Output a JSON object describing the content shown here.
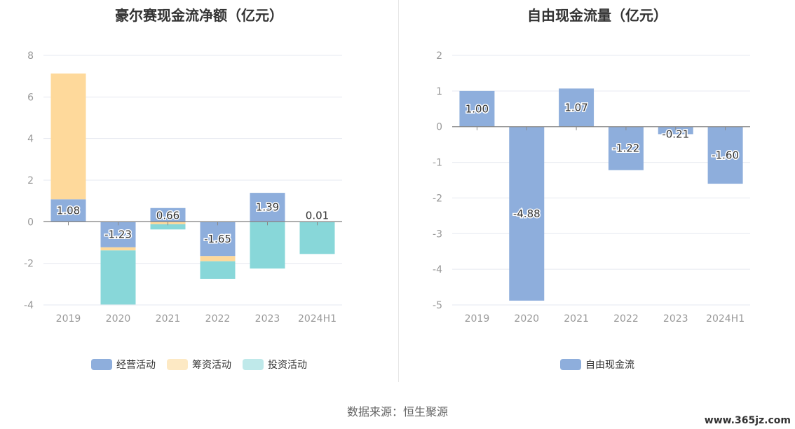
{
  "left": {
    "title": "豪尔赛现金流净额（亿元）",
    "legend": [
      {
        "label": "经营活动",
        "color": "#8eaedc"
      },
      {
        "label": "筹资活动",
        "color": "#fed99b"
      },
      {
        "label": "投资活动",
        "color": "#88d7d9"
      }
    ]
  },
  "right": {
    "title": "自由现金流量（亿元）",
    "legend": [
      {
        "label": "自由现金流",
        "color": "#8eaedc"
      }
    ]
  },
  "source": "数据来源：恒生聚源",
  "watermark": "www.365jz.com",
  "chart_data": [
    {
      "type": "bar",
      "stacked": true,
      "title": "豪尔赛现金流净额（亿元）",
      "categories": [
        "2019",
        "2020",
        "2021",
        "2022",
        "2023",
        "2024H1"
      ],
      "ylim": [
        -4,
        8
      ],
      "yticks": [
        -4,
        -2,
        0,
        2,
        4,
        6,
        8
      ],
      "grid": true,
      "legend_position": "bottom",
      "series": [
        {
          "name": "经营活动",
          "color": "#8eaedc",
          "values": [
            1.08,
            -1.23,
            0.66,
            -1.65,
            1.39,
            0.01
          ],
          "labels": [
            "1.08",
            "-1.23",
            "0.66",
            "-1.65",
            "1.39",
            "0.01"
          ]
        },
        {
          "name": "筹资活动",
          "color": "#fed99b",
          "values": [
            6.05,
            -0.15,
            -0.12,
            -0.25,
            0.0,
            0.0
          ]
        },
        {
          "name": "投资活动",
          "color": "#88d7d9",
          "values": [
            0.0,
            -2.6,
            -0.25,
            -0.85,
            -2.25,
            -1.55
          ]
        }
      ]
    },
    {
      "type": "bar",
      "title": "自由现金流量（亿元）",
      "categories": [
        "2019",
        "2020",
        "2021",
        "2022",
        "2023",
        "2024H1"
      ],
      "ylim": [
        -5,
        2
      ],
      "yticks": [
        -5,
        -4,
        -3,
        -2,
        -1,
        0,
        1,
        2
      ],
      "grid": true,
      "legend_position": "bottom",
      "series": [
        {
          "name": "自由现金流",
          "color": "#8eaedc",
          "values": [
            1.0,
            -4.88,
            1.07,
            -1.22,
            -0.21,
            -1.6
          ],
          "labels": [
            "1.00",
            "-4.88",
            "1.07",
            "-1.22",
            "-0.21",
            "-1.60"
          ]
        }
      ]
    }
  ]
}
